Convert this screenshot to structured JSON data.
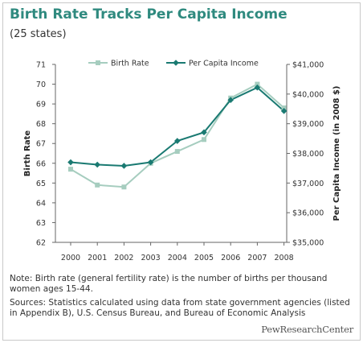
{
  "header": {
    "title": "Birth Rate Tracks Per Capita Income",
    "subtitle": "(25 states)"
  },
  "colors": {
    "title": "#2f8a7f",
    "birth_rate": "#a6cdbf",
    "income": "#1a7a72"
  },
  "chart_data": {
    "type": "line",
    "categories": [
      "2000",
      "2001",
      "2002",
      "2003",
      "2004",
      "2005",
      "2006",
      "2007",
      "2008"
    ],
    "series": [
      {
        "name": "Birth Rate",
        "axis": "left",
        "marker": "square",
        "values": [
          65.7,
          64.9,
          64.8,
          66.0,
          66.6,
          67.2,
          69.3,
          70.0,
          68.8
        ]
      },
      {
        "name": "Per Capita Income",
        "axis": "right",
        "marker": "diamond",
        "values": [
          37700,
          37620,
          37580,
          37700,
          38420,
          38710,
          39800,
          40220,
          39430
        ]
      }
    ],
    "y_left": {
      "label": "Birth Rate",
      "min": 62,
      "max": 71,
      "ticks": [
        "62",
        "63",
        "64",
        "65",
        "66",
        "67",
        "68",
        "69",
        "70",
        "71"
      ]
    },
    "y_right": {
      "label": "Per Capita Income (in 2008 $)",
      "min": 35000,
      "max": 41000,
      "ticks": [
        "$35,000",
        "$36,000",
        "$37,000",
        "$38,000",
        "$39,000",
        "$40,000",
        "$41,000"
      ]
    },
    "legend_position": "top-center",
    "grid": false
  },
  "notes": {
    "note": "Note: Birth rate (general fertility rate) is the number of births per thousand women ages 15-44.",
    "sources": "Sources: Statistics calculated using data from state government agencies (listed in Appendix B), U.S. Census Bureau, and Bureau of Economic Analysis"
  },
  "brand": "PewResearchCenter"
}
